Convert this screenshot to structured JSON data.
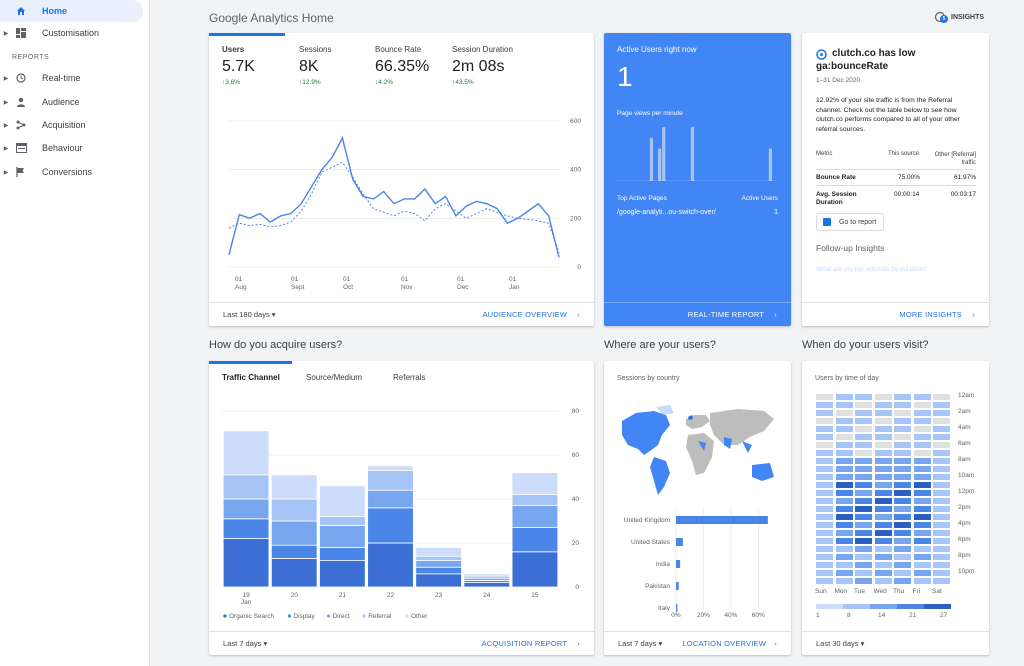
{
  "sidebar": {
    "items": [
      {
        "label": "Home",
        "icon": "home-icon",
        "active": true
      },
      {
        "label": "Customisation",
        "icon": "dashboard-icon"
      },
      {
        "label": "Real-time",
        "icon": "clock-icon"
      },
      {
        "label": "Audience",
        "icon": "person-icon"
      },
      {
        "label": "Acquisition",
        "icon": "acquisition-icon"
      },
      {
        "label": "Behaviour",
        "icon": "behaviour-icon"
      },
      {
        "label": "Conversions",
        "icon": "flag-icon"
      }
    ],
    "section_label": "REPORTS"
  },
  "header": {
    "title": "Google Analytics Home",
    "insights_label": "INSIGHTS",
    "insights_badge": "5"
  },
  "audience": {
    "metrics": [
      {
        "label": "Users",
        "value": "5.7K",
        "change": "↑3.6%"
      },
      {
        "label": "Sessions",
        "value": "8K",
        "change": "↑12.9%"
      },
      {
        "label": "Bounce Rate",
        "value": "66.35%",
        "change": "↓4.2%"
      },
      {
        "label": "Session Duration",
        "value": "2m 08s",
        "change": "↑43.5%"
      }
    ],
    "y_ticks": [
      "600",
      "400",
      "200",
      "0"
    ],
    "x_ticks": [
      {
        "day": "01",
        "month": "Aug"
      },
      {
        "day": "01",
        "month": "Sept"
      },
      {
        "day": "01",
        "month": "Oct"
      },
      {
        "day": "01",
        "month": "Nov"
      },
      {
        "day": "01",
        "month": "Dec"
      },
      {
        "day": "01",
        "month": "Jan"
      }
    ],
    "date_range": "Last 180 days",
    "link": "AUDIENCE OVERVIEW"
  },
  "chart_data": [
    {
      "type": "line",
      "ylim": [
        0,
        600
      ],
      "series": [
        {
          "values": [
            50,
            215,
            200,
            220,
            185,
            210,
            220,
            260,
            330,
            400,
            450,
            530,
            360,
            290,
            280,
            310,
            260,
            280,
            280,
            320,
            260,
            290,
            210,
            250,
            270,
            260,
            240,
            180,
            200,
            230,
            260,
            210,
            40
          ]
        },
        {
          "values": [
            160,
            180,
            170,
            175,
            165,
            170,
            185,
            230,
            300,
            390,
            410,
            430,
            370,
            300,
            240,
            225,
            210,
            230,
            220,
            190,
            240,
            260,
            230,
            200,
            220,
            240,
            225,
            210,
            200,
            195,
            190,
            180,
            60
          ]
        }
      ]
    },
    {
      "type": "bar",
      "categories": [
        "19 Jan",
        "20",
        "21",
        "22",
        "23",
        "24",
        "25"
      ],
      "ylim": [
        0,
        80
      ],
      "series": [
        {
          "name": "Organic Search",
          "values": [
            22,
            13,
            12,
            20,
            6,
            2,
            16
          ]
        },
        {
          "name": "Display",
          "values": [
            9,
            6,
            6,
            16,
            3,
            1,
            11
          ]
        },
        {
          "name": "Direct",
          "values": [
            9,
            11,
            10,
            8,
            3,
            1,
            10
          ]
        },
        {
          "name": "Referral",
          "values": [
            11,
            10,
            4,
            9,
            2,
            1,
            5
          ]
        },
        {
          "name": "Other",
          "values": [
            20,
            11,
            14,
            2,
            4,
            1,
            10
          ]
        }
      ]
    },
    {
      "type": "bar",
      "categories": [
        "United Kingdom",
        "United States",
        "India",
        "Pakistan",
        "Italy"
      ],
      "ylim": [
        0,
        70
      ],
      "values": [
        67,
        5,
        3,
        2,
        1
      ]
    }
  ],
  "realtime": {
    "title": "Active Users right now",
    "count": "1",
    "pageviews_label": "Page views per minute",
    "pageviews": [
      0,
      0,
      0,
      0,
      0,
      0,
      0,
      0,
      4,
      0,
      3,
      5,
      0,
      0,
      0,
      0,
      0,
      0,
      5,
      0,
      0,
      0,
      0,
      0,
      0,
      0,
      0,
      0,
      0,
      0,
      0,
      0,
      0,
      0,
      0,
      0,
      0,
      3,
      0
    ],
    "top_pages_label": "Top Active Pages",
    "active_users_label": "Active Users",
    "page": "/google-analyti...ou-switch-over/",
    "page_users": "1",
    "link": "REAL-TIME REPORT"
  },
  "insight": {
    "title": "clutch.co has low ga:bounceRate",
    "date": "1–31 Dec 2020",
    "body": "12.92% of your site traffic is from the Referral channel. Check out the table below to see how clutch.co performs compared to all of your other referral sources.",
    "col_metric": "Metric",
    "col_source": "This source",
    "col_other": "Other [Referral] traffic",
    "rows": [
      {
        "metric": "Bounce Rate",
        "source": "75.00%",
        "other": "61.97%"
      },
      {
        "metric": "Avg. Session Duration",
        "source": "00:00:14",
        "other": "00:03:17"
      }
    ],
    "button": "Go to report",
    "followup": "Follow-up Insights",
    "followup_q": "What are my top referrals by duration?",
    "link": "MORE INSIGHTS"
  },
  "acquire": {
    "section_title": "How do you acquire users?",
    "tabs": [
      "Traffic Channel",
      "Source/Medium",
      "Referrals"
    ],
    "y_ticks": [
      "80",
      "60",
      "40",
      "20",
      "0"
    ],
    "date_range": "Last 7 days",
    "link": "ACQUISITION REPORT",
    "colors": [
      "#3b6fd4",
      "#4a86e8",
      "#77a6ef",
      "#a6c4f5",
      "#cddcfa"
    ]
  },
  "location": {
    "section_title": "Where are your users?",
    "card_title": "Sessions by country",
    "x_ticks": [
      "0%",
      "20%",
      "40%",
      "60%"
    ],
    "date_range": "Last 7 days",
    "link": "LOCATION OVERVIEW"
  },
  "visit": {
    "section_title": "When do your users visit?",
    "card_title": "Users by time of day",
    "hours": [
      "12am",
      "2am",
      "4am",
      "6am",
      "8am",
      "10am",
      "12pm",
      "2pm",
      "4pm",
      "6pm",
      "8pm",
      "10pm"
    ],
    "days": [
      "Sun",
      "Mon",
      "Tue",
      "Wed",
      "Thu",
      "Fri",
      "Sat"
    ],
    "legend": [
      "1",
      "8",
      "14",
      "21",
      "27"
    ],
    "date_range": "Last 30 days"
  }
}
